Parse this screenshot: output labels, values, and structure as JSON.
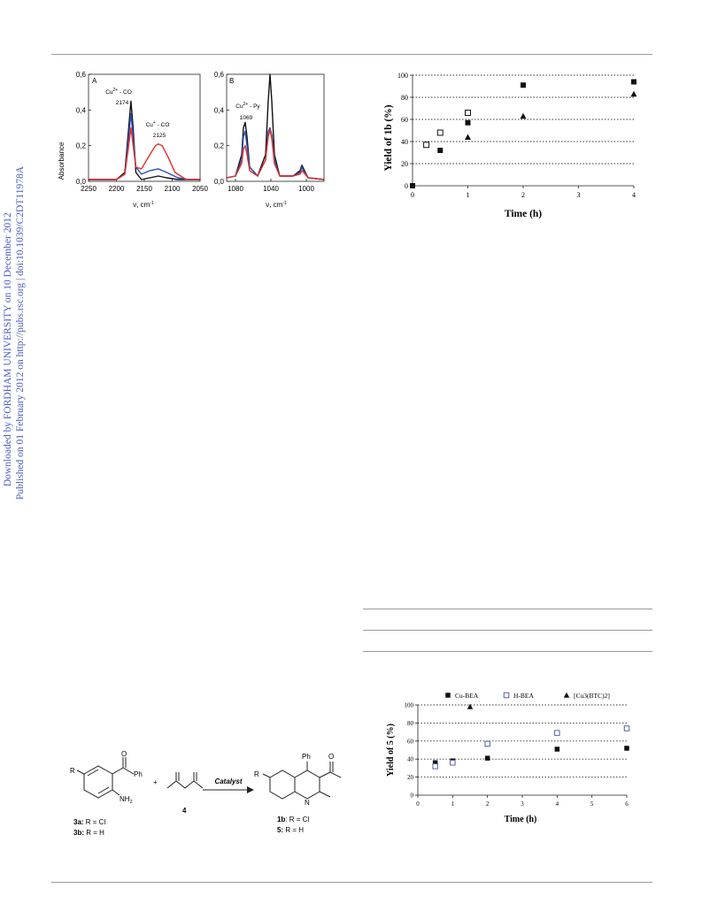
{
  "sidebar": {
    "line1": "Downloaded by FORDHAM UNIVERSITY on 10 December 2012",
    "line2": "Published on 01 February 2012 on http://pubs.rsc.org | doi:10.1039/C2DT11978A"
  },
  "colors": {
    "blue": "#2b4fb5",
    "red": "#e0302a",
    "black": "#111111",
    "sidebar": "#4a5ec4",
    "markerBlue": "#5560a8"
  },
  "chart_data": [
    {
      "type": "line",
      "panel_label": "A",
      "ylabel": "Absorbance",
      "xlabel": "ν, cm",
      "xlabel_sup": "-1",
      "xlim": [
        2250,
        2050
      ],
      "ylim": [
        0,
        0.6
      ],
      "x_ticks": [
        "2250",
        "2200",
        "2150",
        "2100",
        "2050"
      ],
      "y_ticks": [
        "0,0",
        "0,2",
        "0,4",
        "0,6"
      ],
      "annotations": [
        {
          "label": "Cu",
          "sup": "2+",
          "tail": " - CO",
          "value": "2174",
          "x": 2174,
          "y": 0.52
        },
        {
          "label": "Cu",
          "sup": "+",
          "tail": " - CO",
          "value": "2125",
          "x": 2125,
          "y": 0.28
        }
      ],
      "series": [
        {
          "color": "black",
          "x": [
            2250,
            2200,
            2185,
            2178,
            2174,
            2170,
            2165,
            2155,
            2140,
            2125,
            2110,
            2090,
            2070,
            2050
          ],
          "y": [
            0.01,
            0.01,
            0.05,
            0.3,
            0.45,
            0.3,
            0.05,
            0.01,
            0.02,
            0.03,
            0.02,
            0.01,
            0.01,
            0.01
          ]
        },
        {
          "color": "blue",
          "x": [
            2250,
            2200,
            2185,
            2178,
            2174,
            2170,
            2165,
            2155,
            2140,
            2125,
            2110,
            2090,
            2070,
            2050
          ],
          "y": [
            0.01,
            0.01,
            0.04,
            0.25,
            0.38,
            0.25,
            0.08,
            0.04,
            0.06,
            0.07,
            0.05,
            0.02,
            0.01,
            0.01
          ]
        },
        {
          "color": "red",
          "x": [
            2250,
            2200,
            2185,
            2178,
            2174,
            2170,
            2165,
            2155,
            2140,
            2130,
            2125,
            2118,
            2108,
            2095,
            2075,
            2050
          ],
          "y": [
            0.01,
            0.01,
            0.04,
            0.2,
            0.3,
            0.2,
            0.08,
            0.07,
            0.15,
            0.2,
            0.21,
            0.2,
            0.14,
            0.05,
            0.01,
            0.01
          ]
        }
      ]
    },
    {
      "type": "line",
      "panel_label": "B",
      "xlabel": "ν, cm",
      "xlabel_sup": "-1",
      "xlim": [
        1090,
        980
      ],
      "ylim": [
        0,
        0.6
      ],
      "x_ticks": [
        "1080",
        "1040",
        "1000"
      ],
      "y_ticks": [
        "0,0",
        "0,2",
        "0,4",
        "0,6"
      ],
      "annotations": [
        {
          "label": "Cu",
          "sup": "2+",
          "tail": " - Py",
          "value": "1069",
          "x": 1069,
          "y": 0.38
        }
      ],
      "series": [
        {
          "color": "black",
          "x": [
            1090,
            1080,
            1073,
            1071,
            1069,
            1067,
            1064,
            1055,
            1046,
            1043,
            1041,
            1039,
            1036,
            1030,
            1015,
            1007,
            1005,
            1003,
            998,
            980
          ],
          "y": [
            0.02,
            0.03,
            0.15,
            0.3,
            0.33,
            0.25,
            0.08,
            0.03,
            0.15,
            0.45,
            0.6,
            0.45,
            0.15,
            0.03,
            0.03,
            0.06,
            0.09,
            0.07,
            0.02,
            0.01
          ]
        },
        {
          "color": "blue",
          "x": [
            1090,
            1080,
            1073,
            1071,
            1069,
            1067,
            1064,
            1055,
            1046,
            1043,
            1041,
            1039,
            1036,
            1030,
            1015,
            1007,
            1005,
            1003,
            998,
            980
          ],
          "y": [
            0.02,
            0.03,
            0.12,
            0.25,
            0.28,
            0.2,
            0.08,
            0.03,
            0.12,
            0.28,
            0.3,
            0.26,
            0.12,
            0.03,
            0.03,
            0.05,
            0.08,
            0.06,
            0.02,
            0.01
          ]
        },
        {
          "color": "red",
          "x": [
            1090,
            1080,
            1073,
            1071,
            1069,
            1067,
            1064,
            1055,
            1046,
            1043,
            1041,
            1039,
            1036,
            1030,
            1015,
            1007,
            1005,
            1003,
            998,
            980
          ],
          "y": [
            0.02,
            0.03,
            0.1,
            0.18,
            0.2,
            0.15,
            0.06,
            0.03,
            0.12,
            0.25,
            0.29,
            0.24,
            0.1,
            0.03,
            0.03,
            0.04,
            0.06,
            0.05,
            0.02,
            0.01
          ]
        }
      ]
    },
    {
      "type": "scatter",
      "ylabel": "Yield of 1b (%)",
      "xlabel": "Time (h)",
      "xlim": [
        0,
        4
      ],
      "ylim": [
        0,
        100
      ],
      "x_ticks": [
        "0",
        "1",
        "2",
        "3",
        "4"
      ],
      "y_ticks": [
        "0",
        "20",
        "40",
        "60",
        "80",
        "100"
      ],
      "grid": "horizontal dotted",
      "series": [
        {
          "marker": "filled-square",
          "x": [
            0,
            0.5,
            1,
            2,
            4
          ],
          "y": [
            0,
            32,
            57,
            91,
            94
          ]
        },
        {
          "marker": "open-square",
          "x": [
            0.25,
            0.5,
            1
          ],
          "y": [
            37,
            48,
            66
          ]
        },
        {
          "marker": "filled-triangle",
          "x": [
            1,
            2,
            4
          ],
          "y": [
            44,
            63,
            83
          ]
        }
      ]
    },
    {
      "type": "scatter",
      "ylabel": "Yield of 5 (%)",
      "xlabel": "Time (h)",
      "xlim": [
        0,
        6
      ],
      "ylim": [
        0,
        100
      ],
      "x_ticks": [
        "0",
        "1",
        "2",
        "3",
        "4",
        "5",
        "6"
      ],
      "y_ticks": [
        "0",
        "20",
        "40",
        "60",
        "80",
        "100"
      ],
      "grid": "horizontal dotted",
      "legend": "top",
      "series": [
        {
          "name": "Cu-BEA",
          "marker": "filled-square",
          "x": [
            0.5,
            1,
            2,
            4,
            6
          ],
          "y": [
            36,
            38,
            41,
            51,
            52
          ]
        },
        {
          "name": "H-BEA",
          "marker": "open-square-blue",
          "x": [
            0.5,
            1,
            2,
            4,
            6
          ],
          "y": [
            32,
            36,
            57,
            69,
            74
          ]
        },
        {
          "name": "[Cu3(BTC)2]",
          "marker": "filled-triangle",
          "x": [
            1.5
          ],
          "y": [
            98
          ]
        }
      ]
    }
  ],
  "scheme": {
    "left_R": "R",
    "left_Ph": "Ph",
    "left_O": "O",
    "left_NH": "NH",
    "left_NH_sub": "2",
    "plus": "+",
    "reagent_num": "4",
    "arrow_label": "Catalyst",
    "prod_Ph": "Ph",
    "prod_O": "O",
    "prod_R": "R",
    "prod_N": "N",
    "lbl_3a_num": "3a:",
    "lbl_3a_txt": " R = Cl",
    "lbl_3b_num": "3b:",
    "lbl_3b_txt": " R = H",
    "lbl_1b_num": "1b",
    "lbl_1b_txt": ": R = Cl",
    "lbl_5_num": "5:",
    "lbl_5_txt": " R = H"
  }
}
